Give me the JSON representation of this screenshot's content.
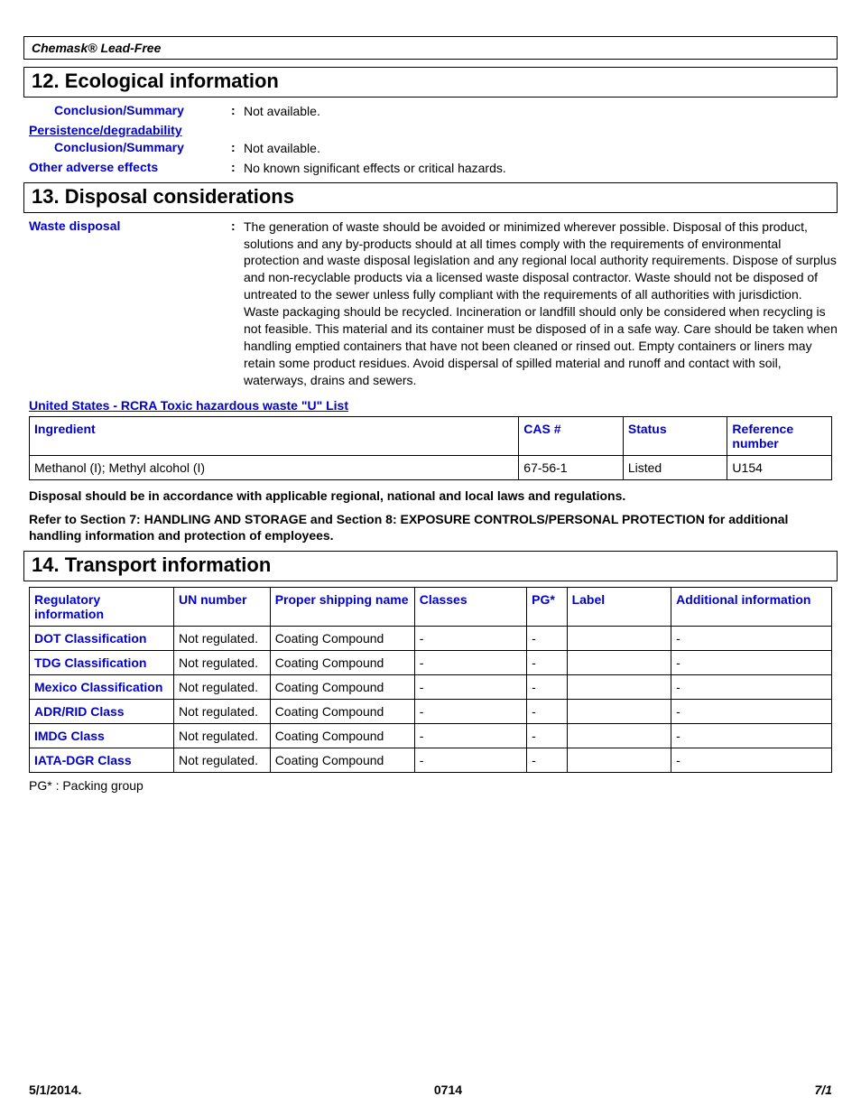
{
  "product_name": "Chemask® Lead-Free",
  "sections": {
    "ecological": {
      "heading": "12. Ecological information",
      "rows": [
        {
          "label": "Conclusion/Summary",
          "value": "Not available.",
          "indent": true
        },
        {
          "label": "Persistence/degradability",
          "value": "",
          "underline": true
        },
        {
          "label": "Conclusion/Summary",
          "value": "Not available.",
          "indent": true
        },
        {
          "label": "Other adverse effects",
          "value": "No known significant effects or critical hazards."
        }
      ]
    },
    "disposal": {
      "heading": "13. Disposal considerations",
      "waste_label": "Waste disposal",
      "waste_text": "The generation of waste should be avoided or minimized wherever possible.  Disposal of this product, solutions and any by-products should at all times comply with the requirements of environmental protection and waste disposal legislation and any regional local authority requirements.  Dispose of surplus and non-recyclable products via a licensed waste disposal contractor.  Waste should not be disposed of untreated to the sewer unless fully compliant with the requirements of all authorities with jurisdiction.  Waste packaging should be recycled.  Incineration or landfill should only be considered when recycling is not feasible.  This material and its container must be disposed of in a safe way.  Care should be taken when handling emptied containers that have not been cleaned or rinsed out.  Empty containers or liners may retain some product residues.  Avoid dispersal of spilled material and runoff and contact with soil, waterways, drains and sewers.",
      "list_heading": "United States - RCRA Toxic hazardous waste \"U\" List",
      "table": {
        "headers": [
          "Ingredient",
          "CAS #",
          "Status",
          "Reference number"
        ],
        "widths": [
          "61%",
          "13%",
          "13%",
          "13%"
        ],
        "row": [
          "Methanol (I); Methyl alcohol (I)",
          "67-56-1",
          "Listed",
          "U154"
        ]
      },
      "note1": "Disposal should be in accordance with applicable regional, national and local laws and regulations.",
      "note2": "Refer to Section 7: HANDLING AND STORAGE and Section 8: EXPOSURE CONTROLS/PERSONAL PROTECTION for additional handling information and protection of employees."
    },
    "transport": {
      "heading": "14. Transport information",
      "headers": [
        "Regulatory information",
        "UN number",
        "Proper shipping name",
        "Classes",
        "PG*",
        "Label",
        "Additional information"
      ],
      "widths": [
        "18%",
        "12%",
        "18%",
        "14%",
        "5%",
        "13%",
        "20%"
      ],
      "rows": [
        {
          "label": "DOT Classification",
          "un": "Not regulated.",
          "psn": "Coating Compound",
          "classes": "-",
          "pg": "-",
          "lbl": "",
          "addl": "-"
        },
        {
          "label": "TDG Classification",
          "un": "Not regulated.",
          "psn": "Coating Compound",
          "classes": "-",
          "pg": "-",
          "lbl": "",
          "addl": "-"
        },
        {
          "label": "Mexico Classification",
          "un": "Not regulated.",
          "psn": "Coating Compound",
          "classes": "-",
          "pg": "-",
          "lbl": "",
          "addl": "-"
        },
        {
          "label": "ADR/RID Class",
          "un": "Not regulated.",
          "psn": "Coating Compound",
          "classes": "-",
          "pg": "-",
          "lbl": "",
          "addl": "-"
        },
        {
          "label": "IMDG Class",
          "un": "Not regulated.",
          "psn": "Coating Compound",
          "classes": "-",
          "pg": "-",
          "lbl": "",
          "addl": "-"
        },
        {
          "label": "IATA-DGR Class",
          "un": "Not regulated.",
          "psn": "Coating Compound",
          "classes": "-",
          "pg": "-",
          "lbl": "",
          "addl": "-"
        }
      ],
      "pg_note": "PG* : Packing group"
    }
  },
  "footer": {
    "date": "5/1/2014.",
    "code": "0714",
    "page": "7/1"
  }
}
